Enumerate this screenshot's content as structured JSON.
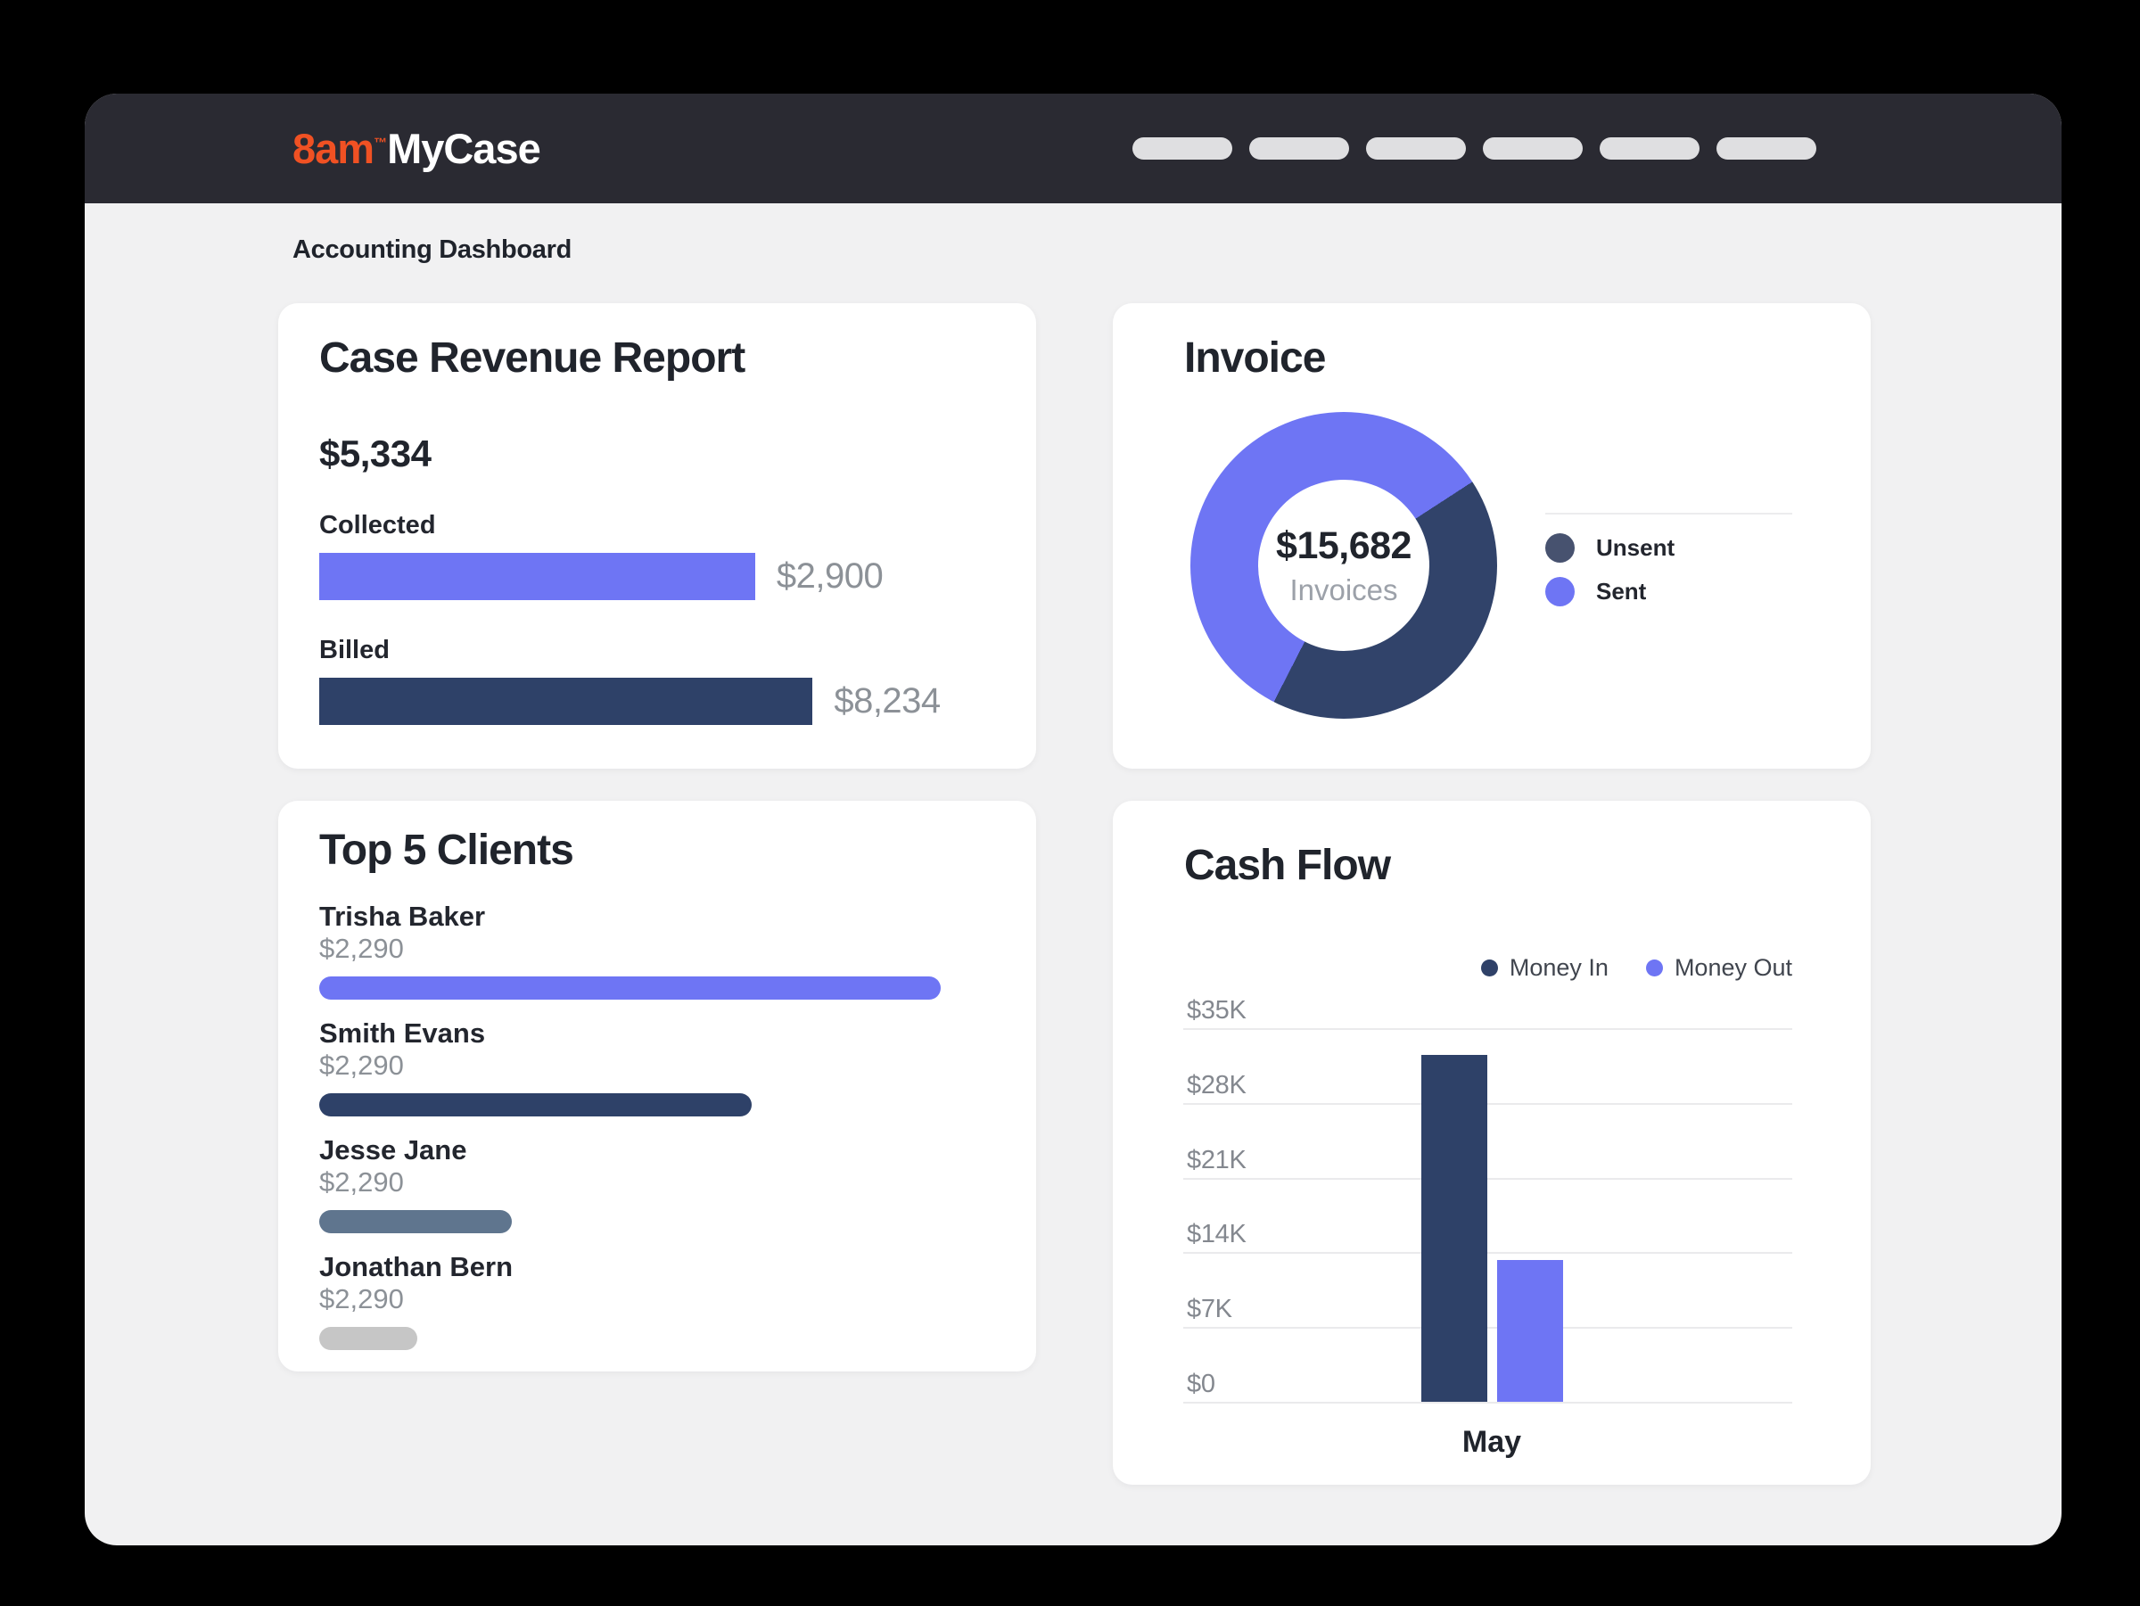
{
  "header": {
    "logo": {
      "brand": "8am",
      "tm": "™",
      "product": "MyCase"
    },
    "nav_pill_count": 6
  },
  "page": {
    "title": "Accounting Dashboard"
  },
  "colors": {
    "accent_purple": "#6E75F4",
    "accent_navy": "#2E4168",
    "donut_navy": "#31436A",
    "legend_navy_dot": "#47526F",
    "slate_bar": "#5F758E",
    "gray_bar": "#C6C6C6",
    "value_gray": "#8C9197"
  },
  "cards": {
    "case_revenue": {
      "title": "Case Revenue Report",
      "total": "$5,334",
      "rows": [
        {
          "label": "Collected",
          "value": "$2,900",
          "width_pct": 64.5,
          "color": "#6E75F4"
        },
        {
          "label": "Billed",
          "value": "$8,234",
          "width_pct": 73,
          "color": "#2E4168"
        }
      ]
    },
    "invoice": {
      "title": "Invoice",
      "center_value": "$15,682",
      "center_label": "Invoices",
      "legend": [
        {
          "label": "Unsent",
          "color": "#47526F"
        },
        {
          "label": "Sent",
          "color": "#6E75F4"
        }
      ],
      "donut": {
        "start_deg": 57,
        "segments": [
          {
            "label": "Unsent",
            "pct": 41.7,
            "color": "#31436A"
          },
          {
            "label": "Sent",
            "pct": 58.3,
            "color": "#6E75F4"
          }
        ]
      }
    },
    "top_clients": {
      "title": "Top 5 Clients",
      "clients": [
        {
          "name": "Trisha Baker",
          "value": "$2,290",
          "width_pct": 92,
          "color": "#6E75F4"
        },
        {
          "name": "Smith Evans",
          "value": "$2,290",
          "width_pct": 64,
          "color": "#2E4168"
        },
        {
          "name": "Jesse Jane",
          "value": "$2,290",
          "width_pct": 28.5,
          "color": "#5F758E"
        },
        {
          "name": "Jonathan Bern",
          "value": "$2,290",
          "width_pct": 14.5,
          "color": "#C6C6C6"
        }
      ]
    },
    "cash_flow": {
      "title": "Cash Flow",
      "legend": [
        {
          "label": "Money In",
          "color": "#2F4168"
        },
        {
          "label": "Money Out",
          "color": "#6E75F4"
        }
      ],
      "month": "May"
    }
  },
  "chart_data": [
    {
      "type": "bar",
      "title": "Case Revenue Report",
      "categories": [
        "Collected",
        "Billed"
      ],
      "values": [
        2900,
        8234
      ],
      "total_label": "$5,334",
      "orientation": "horizontal",
      "colors": [
        "#6E75F4",
        "#2E4168"
      ]
    },
    {
      "type": "pie",
      "title": "Invoice",
      "center_value": "$15,682",
      "center_label": "Invoices",
      "categories": [
        "Unsent",
        "Sent"
      ],
      "values_pct": [
        41.7,
        58.3
      ],
      "colors": [
        "#31436A",
        "#6E75F4"
      ],
      "legend_position": "right"
    },
    {
      "type": "bar",
      "title": "Top 5 Clients",
      "categories": [
        "Trisha Baker",
        "Smith Evans",
        "Jesse Jane",
        "Jonathan Bern"
      ],
      "values": [
        2290,
        2290,
        2290,
        2290
      ],
      "bar_length_pct": [
        92,
        64,
        28.5,
        14.5
      ],
      "orientation": "horizontal",
      "colors": [
        "#6E75F4",
        "#2E4168",
        "#5F758E",
        "#C6C6C6"
      ]
    },
    {
      "type": "bar",
      "title": "Cash Flow",
      "categories": [
        "May"
      ],
      "series": [
        {
          "name": "Money In",
          "values": [
            32500
          ],
          "color": "#2E4168"
        },
        {
          "name": "Money Out",
          "values": [
            13300
          ],
          "color": "#6E75F4"
        }
      ],
      "ylabel": "",
      "ylim": [
        0,
        35000
      ],
      "yticks": [
        {
          "label": "$35K",
          "value": 35000
        },
        {
          "label": "$28K",
          "value": 28000
        },
        {
          "label": "$21K",
          "value": 21000
        },
        {
          "label": "$14K",
          "value": 14000
        },
        {
          "label": "$7K",
          "value": 7000
        },
        {
          "label": "$0",
          "value": 0
        }
      ],
      "grid": true,
      "legend_position": "top-right"
    }
  ]
}
